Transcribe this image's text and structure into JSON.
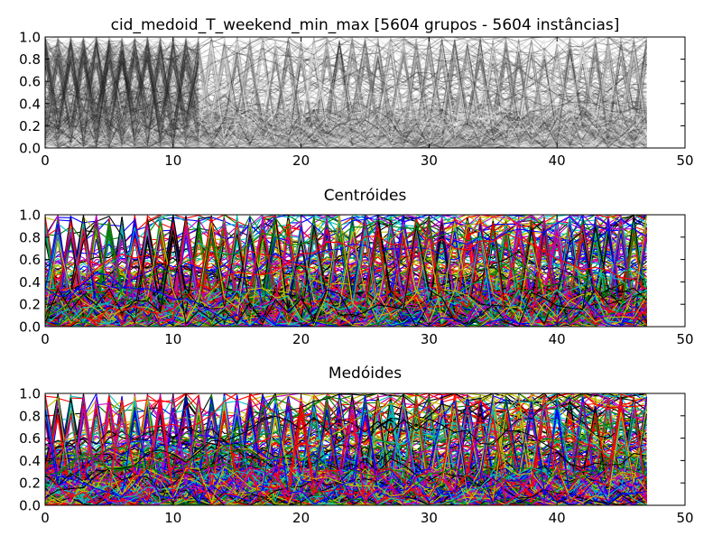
{
  "figure": {
    "background": "#ffffff"
  },
  "chart_data": [
    {
      "type": "line",
      "title": "cid_medoid_T_weekend_min_max [5604 grupos - 5604 instâncias]",
      "xlabel": "",
      "ylabel": "",
      "xlim": [
        0,
        50
      ],
      "ylim": [
        0,
        1
      ],
      "x_ticks": [
        0,
        10,
        20,
        30,
        40,
        50
      ],
      "y_ticks": [
        0.0,
        0.2,
        0.4,
        0.6,
        0.8,
        1.0
      ],
      "x_tick_labels": [
        "0",
        "10",
        "20",
        "30",
        "40",
        "50"
      ],
      "y_tick_labels": [
        "0.0",
        "0.2",
        "0.4",
        "0.6",
        "0.8",
        "1.0"
      ],
      "grid": false,
      "legend": "none",
      "x_range_of_series": [
        0,
        47
      ],
      "series_count": 5604,
      "coloring": "grayscale",
      "palette": [
        "#111111",
        "#333333",
        "#555555",
        "#777777",
        "#999999",
        "#bbbbbb",
        "#dddddd",
        "#f0f0f0",
        "#f7f7f7",
        "#ffffff"
      ]
    },
    {
      "type": "line",
      "title": "Centróides",
      "xlabel": "",
      "ylabel": "",
      "xlim": [
        0,
        50
      ],
      "ylim": [
        0,
        1
      ],
      "x_ticks": [
        0,
        10,
        20,
        30,
        40,
        50
      ],
      "y_ticks": [
        0.0,
        0.2,
        0.4,
        0.6,
        0.8,
        1.0
      ],
      "x_tick_labels": [
        "0",
        "10",
        "20",
        "30",
        "40",
        "50"
      ],
      "y_tick_labels": [
        "0.0",
        "0.2",
        "0.4",
        "0.6",
        "0.8",
        "1.0"
      ],
      "grid": false,
      "legend": "none",
      "x_range_of_series": [
        0,
        47
      ],
      "series_count": 5604,
      "coloring": "cycle",
      "palette": [
        "#0000ff",
        "#008000",
        "#ff0000",
        "#00bfbf",
        "#bf00bf",
        "#bfbf00",
        "#000000"
      ]
    },
    {
      "type": "line",
      "title": "Medóides",
      "xlabel": "",
      "ylabel": "",
      "xlim": [
        0,
        50
      ],
      "ylim": [
        0,
        1
      ],
      "x_ticks": [
        0,
        10,
        20,
        30,
        40,
        50
      ],
      "y_ticks": [
        0.0,
        0.2,
        0.4,
        0.6,
        0.8,
        1.0
      ],
      "x_tick_labels": [
        "0",
        "10",
        "20",
        "30",
        "40",
        "50"
      ],
      "y_tick_labels": [
        "0.0",
        "0.2",
        "0.4",
        "0.6",
        "0.8",
        "1.0"
      ],
      "grid": false,
      "legend": "none",
      "x_range_of_series": [
        0,
        47
      ],
      "series_count": 5604,
      "coloring": "cycle",
      "palette": [
        "#0000ff",
        "#008000",
        "#ff0000",
        "#00bfbf",
        "#bf00bf",
        "#bfbf00",
        "#000000"
      ]
    }
  ]
}
